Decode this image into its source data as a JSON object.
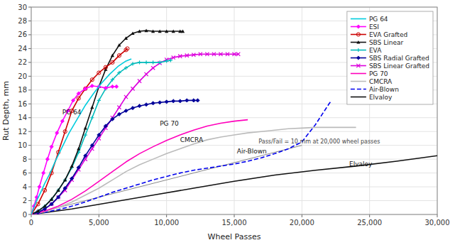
{
  "chart_data": {
    "type": "line",
    "x_label": "Wheel Passes",
    "y_label": "Rut Depth, mm",
    "xlim": [
      0,
      30000
    ],
    "ylim": [
      0,
      30
    ],
    "xticks": [
      0,
      {
        "value": 5000,
        "label": "5,000"
      },
      {
        "value": 10000,
        "label": "10,000"
      },
      {
        "value": 15000,
        "label": "15,000"
      },
      {
        "value": 20000,
        "label": "20,000"
      },
      {
        "value": 25000,
        "label": "25,000"
      },
      {
        "value": 30000,
        "label": "30,000"
      }
    ],
    "yticks": [
      0,
      2,
      4,
      6,
      8,
      10,
      12,
      14,
      16,
      18,
      20,
      22,
      24,
      26,
      28,
      30
    ],
    "grid": true,
    "legend": "upper right",
    "series": [
      {
        "name": "PG 64",
        "color": "#00CCDD",
        "line_style": "solid",
        "x": [
          0,
          200,
          400,
          700,
          1000,
          1400,
          1800,
          2300,
          2800,
          3400,
          4000,
          4600,
          5200,
          5800,
          6400,
          7000,
          7400
        ],
        "values": [
          0,
          1.0,
          2.0,
          3.2,
          4.5,
          6.0,
          7.8,
          9.8,
          11.8,
          13.8,
          15.8,
          17.5,
          19.0,
          20.3,
          21.4,
          22.2,
          22.5
        ]
      },
      {
        "name": "ESI",
        "color": "#FF00FF",
        "line_style": "solid",
        "marker": "diamond",
        "x": [
          0,
          200,
          400,
          600,
          900,
          1200,
          1500,
          1900,
          2300,
          2700,
          3100,
          3500,
          4000,
          4500,
          5000,
          5500,
          6000,
          6300
        ],
        "values": [
          0,
          1.2,
          2.5,
          4.0,
          6.0,
          8.0,
          9.8,
          11.8,
          13.5,
          15.0,
          16.5,
          17.5,
          18.2,
          18.6,
          18.5,
          18.3,
          18.5,
          18.5
        ]
      },
      {
        "name": "EVA Grafted",
        "color": "#CC0000",
        "line_style": "solid",
        "marker": "open-circle",
        "x": [
          0,
          500,
          1000,
          1500,
          2000,
          2500,
          3000,
          3500,
          4000,
          4500,
          5000,
          5500,
          6000,
          6500,
          7000,
          7100
        ],
        "values": [
          0,
          1.5,
          3.5,
          6.0,
          9.0,
          12.0,
          15.0,
          16.8,
          18.2,
          19.5,
          20.5,
          21.3,
          22.0,
          23.0,
          23.8,
          24.0
        ]
      },
      {
        "name": "SBS Linear",
        "color": "#111111",
        "line_style": "solid",
        "marker": "triangle",
        "x": [
          0,
          500,
          1000,
          1500,
          2000,
          2500,
          3000,
          3500,
          4000,
          4500,
          5000,
          5500,
          6000,
          6500,
          7000,
          7500,
          8000,
          8500,
          9000,
          9500,
          10000,
          10500,
          11000,
          11200
        ],
        "values": [
          0,
          0.5,
          1.2,
          2.2,
          3.5,
          5.0,
          7.0,
          9.5,
          12.5,
          15.5,
          18.5,
          21.0,
          23.0,
          24.5,
          25.5,
          26.2,
          26.5,
          26.6,
          26.5,
          26.5,
          26.5,
          26.5,
          26.5,
          26.5
        ]
      },
      {
        "name": "EVA",
        "color": "#00BBBB",
        "line_style": "solid",
        "marker": "plus",
        "x": [
          0,
          500,
          1000,
          1500,
          2000,
          2500,
          3000,
          3500,
          4000,
          4500,
          5000,
          5500,
          6000,
          6500,
          7000,
          7500,
          8000,
          8500,
          9000,
          9500,
          10000,
          10300
        ],
        "values": [
          0,
          0.5,
          1.2,
          2.2,
          3.5,
          5.0,
          6.8,
          9.0,
          11.5,
          14.0,
          16.5,
          18.2,
          19.5,
          20.5,
          21.2,
          21.8,
          22.0,
          22.0,
          22.0,
          22.0,
          22.2,
          22.3
        ]
      },
      {
        "name": "SBS Radial Grafted",
        "color": "#000099",
        "line_style": "solid",
        "marker": "diamond",
        "x": [
          0,
          500,
          1000,
          1500,
          2000,
          2500,
          3000,
          3500,
          4000,
          4500,
          5000,
          5500,
          6000,
          6500,
          7000,
          7500,
          8000,
          8500,
          9000,
          9500,
          10000,
          10500,
          11000,
          11500,
          12000,
          12300
        ],
        "values": [
          0,
          0.3,
          0.8,
          1.5,
          2.5,
          3.8,
          5.2,
          6.8,
          8.5,
          10.0,
          11.5,
          12.8,
          13.8,
          14.5,
          15.0,
          15.4,
          15.7,
          15.9,
          16.1,
          16.2,
          16.3,
          16.4,
          16.4,
          16.5,
          16.5,
          16.5
        ]
      },
      {
        "name": "SBS Linear Grafted",
        "color": "#DD00DD",
        "line_style": "solid",
        "marker": "x",
        "x": [
          0,
          500,
          1000,
          1500,
          2000,
          2500,
          3000,
          3500,
          4000,
          4500,
          5000,
          5500,
          6000,
          6500,
          7000,
          7500,
          8000,
          8500,
          9000,
          9500,
          10000,
          10500,
          11000,
          11500,
          12000,
          12500,
          13000,
          13500,
          14000,
          14500,
          15000,
          15300
        ],
        "values": [
          0,
          0.3,
          0.8,
          1.5,
          2.5,
          3.5,
          5.0,
          6.5,
          8.0,
          9.5,
          11.0,
          12.5,
          14.0,
          15.5,
          17.0,
          18.2,
          19.3,
          20.3,
          21.2,
          21.9,
          22.4,
          22.7,
          22.9,
          23.0,
          23.1,
          23.2,
          23.2,
          23.2,
          23.2,
          23.2,
          23.2,
          23.2
        ]
      },
      {
        "name": "PG 70",
        "color": "#FF00BB",
        "line_style": "solid",
        "x": [
          0,
          1000,
          2000,
          3000,
          4000,
          5000,
          6000,
          7000,
          8000,
          9000,
          10000,
          11000,
          12000,
          13000,
          14000,
          15000,
          16000
        ],
        "values": [
          0,
          0.5,
          1.2,
          2.2,
          3.4,
          4.8,
          6.2,
          7.6,
          8.8,
          9.8,
          10.7,
          11.5,
          12.2,
          12.8,
          13.2,
          13.5,
          13.7
        ]
      },
      {
        "name": "CMCRA",
        "color": "#BBBBBB",
        "line_style": "solid",
        "x": [
          0,
          1000,
          2000,
          3000,
          4000,
          5000,
          6000,
          7000,
          8000,
          9000,
          10000,
          11000,
          12000,
          13000,
          14000,
          15000,
          16000,
          17000,
          18000,
          19000,
          20000,
          21000,
          22000,
          23000,
          24000
        ],
        "values": [
          0,
          0.4,
          1.0,
          1.8,
          2.8,
          3.8,
          5.0,
          6.2,
          7.2,
          8.0,
          8.8,
          9.5,
          10.2,
          10.8,
          11.2,
          11.5,
          11.8,
          12.0,
          12.2,
          12.4,
          12.5,
          12.6,
          12.6,
          12.6,
          12.6
        ]
      },
      {
        "name": "Air-Blown",
        "color": "#0000EE",
        "line_style": "dashed",
        "x": [
          0,
          1000,
          2000,
          3000,
          4000,
          5000,
          6000,
          7000,
          8000,
          9000,
          10000,
          11000,
          12000,
          13000,
          14000,
          15000,
          16000,
          17000,
          18000,
          19000,
          20000,
          21000,
          21500,
          22000,
          22200
        ],
        "values": [
          0,
          0.3,
          0.7,
          1.2,
          1.8,
          2.5,
          3.2,
          3.8,
          4.4,
          5.0,
          5.5,
          6.0,
          6.4,
          6.7,
          7.0,
          7.3,
          7.7,
          8.2,
          8.8,
          9.5,
          10.5,
          13.0,
          14.5,
          16.0,
          16.5
        ]
      },
      {
        "name": "Elvaloy",
        "color": "#111111",
        "line_style": "solid",
        "x": [
          0,
          3000,
          6000,
          9000,
          12000,
          15000,
          18000,
          21000,
          24000,
          27000,
          30000
        ],
        "values": [
          0,
          0.8,
          1.8,
          2.8,
          3.8,
          4.8,
          5.7,
          6.4,
          7.0,
          7.7,
          8.5
        ]
      }
    ],
    "reference_lines": [
      {
        "x": [
          0,
          20000
        ],
        "values": [
          0,
          10
        ],
        "color": "#888888"
      }
    ],
    "annotations": [
      {
        "text": "Pass/Fail = 10 mm at 20,000 wheel passes",
        "x": 16800,
        "y": 10.3
      },
      {
        "text": "PG 64",
        "x": 2300,
        "y": 14.5
      },
      {
        "text": "PG 70",
        "x": 9500,
        "y": 12.8
      },
      {
        "text": "CMCRA",
        "x": 11000,
        "y": 10.5
      },
      {
        "text": "Air-Blown",
        "x": 15200,
        "y": 8.8
      },
      {
        "text": "Elvaloy",
        "x": 23500,
        "y": 7.0
      }
    ]
  }
}
